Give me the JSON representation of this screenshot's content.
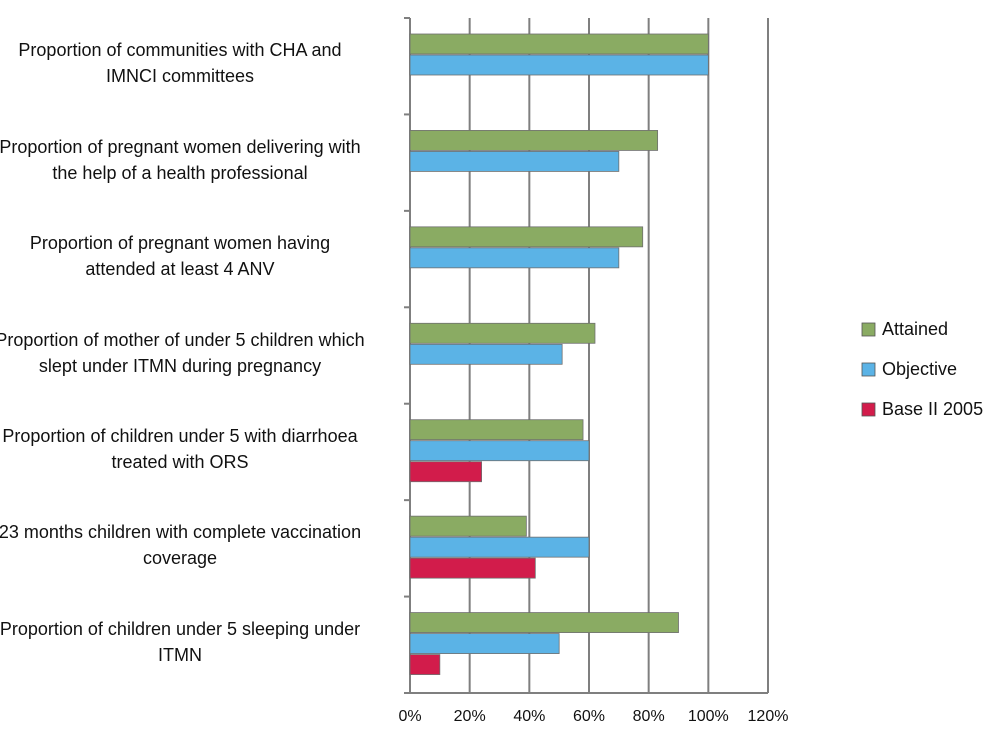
{
  "chart_data": {
    "type": "bar",
    "orientation": "horizontal",
    "categories": [
      "Proportion of communities with CHA and IMNCI committees",
      "Proportion of pregnant women delivering with the help of a health professional",
      "Proportion of pregnant women having attended at least 4 ANV",
      "Proportion of mother of under 5 children which slept under ITMN during pregnancy",
      "Proportion of children under 5 with diarrhoea treated with ORS",
      "23 months children with complete vaccination coverage",
      "Proportion of children under 5 sleeping under ITMN"
    ],
    "series": [
      {
        "name": "Attained",
        "color": "#8aab63",
        "values": [
          100,
          83,
          78,
          62,
          58,
          39,
          90
        ]
      },
      {
        "name": "Objective",
        "color": "#5bb3e6",
        "values": [
          100,
          70,
          70,
          51,
          60,
          60,
          50
        ]
      },
      {
        "name": "Base II 2005",
        "color": "#d21c4b",
        "values": [
          null,
          null,
          null,
          null,
          24,
          42,
          10
        ]
      }
    ],
    "xlim": [
      0,
      120
    ],
    "xticks": [
      {
        "value": 0,
        "label": "0%"
      },
      {
        "value": 20,
        "label": "20%"
      },
      {
        "value": 40,
        "label": "40%"
      },
      {
        "value": 60,
        "label": "60%"
      },
      {
        "value": 80,
        "label": "80%"
      },
      {
        "value": 100,
        "label": "100%"
      },
      {
        "value": 120,
        "label": "120%"
      }
    ],
    "grid": true,
    "legend": "right"
  }
}
